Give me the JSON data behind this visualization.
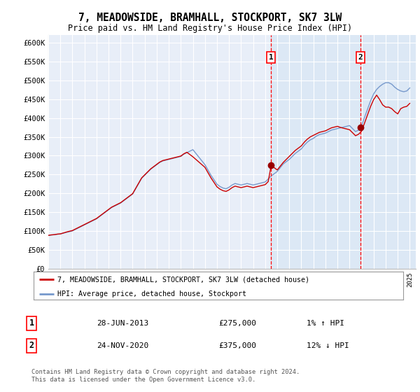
{
  "title": "7, MEADOWSIDE, BRAMHALL, STOCKPORT, SK7 3LW",
  "subtitle": "Price paid vs. HM Land Registry's House Price Index (HPI)",
  "yticks": [
    0,
    50000,
    100000,
    150000,
    200000,
    250000,
    300000,
    350000,
    400000,
    450000,
    500000,
    550000,
    600000
  ],
  "ytick_labels": [
    "£0",
    "£50K",
    "£100K",
    "£150K",
    "£200K",
    "£250K",
    "£300K",
    "£350K",
    "£400K",
    "£450K",
    "£500K",
    "£550K",
    "£600K"
  ],
  "xlim_start": 1995.0,
  "xlim_end": 2025.5,
  "ylim_min": 0,
  "ylim_max": 620000,
  "background_color": "#e8eef8",
  "shaded_bg_color": "#dce8f5",
  "grid_color": "#ffffff",
  "house_line_color": "#cc0000",
  "hpi_line_color": "#7799cc",
  "transaction1_x": 2013.49,
  "transaction1_y": 275000,
  "transaction2_x": 2020.9,
  "transaction2_y": 375000,
  "legend_label_house": "7, MEADOWSIDE, BRAMHALL, STOCKPORT, SK7 3LW (detached house)",
  "legend_label_hpi": "HPI: Average price, detached house, Stockport",
  "annotation1_date": "28-JUN-2013",
  "annotation1_price": "£275,000",
  "annotation1_hpi": "1% ↑ HPI",
  "annotation2_date": "24-NOV-2020",
  "annotation2_price": "£375,000",
  "annotation2_hpi": "12% ↓ HPI",
  "footer": "Contains HM Land Registry data © Crown copyright and database right 2024.\nThis data is licensed under the Open Government Licence v3.0.",
  "hpi_x": [
    1995.0,
    1995.25,
    1995.5,
    1995.75,
    1996.0,
    1996.25,
    1996.5,
    1996.75,
    1997.0,
    1997.25,
    1997.5,
    1997.75,
    1998.0,
    1998.25,
    1998.5,
    1998.75,
    1999.0,
    1999.25,
    1999.5,
    1999.75,
    2000.0,
    2000.25,
    2000.5,
    2000.75,
    2001.0,
    2001.25,
    2001.5,
    2001.75,
    2002.0,
    2002.25,
    2002.5,
    2002.75,
    2003.0,
    2003.25,
    2003.5,
    2003.75,
    2004.0,
    2004.25,
    2004.5,
    2004.75,
    2005.0,
    2005.25,
    2005.5,
    2005.75,
    2006.0,
    2006.25,
    2006.5,
    2006.75,
    2007.0,
    2007.25,
    2007.5,
    2007.75,
    2008.0,
    2008.25,
    2008.5,
    2008.75,
    2009.0,
    2009.25,
    2009.5,
    2009.75,
    2010.0,
    2010.25,
    2010.5,
    2010.75,
    2011.0,
    2011.25,
    2011.5,
    2011.75,
    2012.0,
    2012.25,
    2012.5,
    2012.75,
    2013.0,
    2013.25,
    2013.5,
    2013.75,
    2014.0,
    2014.25,
    2014.5,
    2014.75,
    2015.0,
    2015.25,
    2015.5,
    2015.75,
    2016.0,
    2016.25,
    2016.5,
    2016.75,
    2017.0,
    2017.25,
    2017.5,
    2017.75,
    2018.0,
    2018.25,
    2018.5,
    2018.75,
    2019.0,
    2019.25,
    2019.5,
    2019.75,
    2020.0,
    2020.25,
    2020.5,
    2020.75,
    2021.0,
    2021.25,
    2021.5,
    2021.75,
    2022.0,
    2022.25,
    2022.5,
    2022.75,
    2023.0,
    2023.25,
    2023.5,
    2023.75,
    2024.0,
    2024.25,
    2024.5,
    2024.75,
    2025.0
  ],
  "hpi_y": [
    88000,
    89000,
    90000,
    91000,
    92000,
    94000,
    96000,
    98000,
    100000,
    104000,
    108000,
    112000,
    116000,
    120000,
    124000,
    128000,
    132000,
    138000,
    144000,
    150000,
    156000,
    162000,
    166000,
    170000,
    174000,
    180000,
    186000,
    192000,
    198000,
    212000,
    226000,
    240000,
    248000,
    256000,
    264000,
    270000,
    276000,
    282000,
    286000,
    288000,
    290000,
    292000,
    294000,
    296000,
    298000,
    304000,
    308000,
    312000,
    316000,
    306000,
    296000,
    286000,
    276000,
    262000,
    248000,
    236000,
    224000,
    218000,
    214000,
    212000,
    216000,
    222000,
    226000,
    224000,
    222000,
    224000,
    226000,
    224000,
    222000,
    224000,
    226000,
    228000,
    230000,
    238000,
    246000,
    252000,
    258000,
    268000,
    278000,
    284000,
    290000,
    298000,
    306000,
    312000,
    318000,
    328000,
    336000,
    342000,
    346000,
    352000,
    356000,
    358000,
    360000,
    364000,
    368000,
    370000,
    372000,
    374000,
    376000,
    378000,
    380000,
    372000,
    364000,
    368000,
    380000,
    402000,
    424000,
    446000,
    464000,
    476000,
    484000,
    490000,
    494000,
    494000,
    490000,
    482000,
    476000,
    472000,
    470000,
    472000,
    480000
  ],
  "house_x": [
    1995.0,
    1995.25,
    1995.5,
    1995.75,
    1996.0,
    1996.25,
    1996.5,
    1996.75,
    1997.0,
    1997.25,
    1997.5,
    1997.75,
    1998.0,
    1998.25,
    1998.5,
    1998.75,
    1999.0,
    1999.25,
    1999.5,
    1999.75,
    2000.0,
    2000.25,
    2000.5,
    2000.75,
    2001.0,
    2001.25,
    2001.5,
    2001.75,
    2002.0,
    2002.25,
    2002.5,
    2002.75,
    2003.0,
    2003.25,
    2003.5,
    2003.75,
    2004.0,
    2004.25,
    2004.5,
    2004.75,
    2005.0,
    2005.25,
    2005.5,
    2005.75,
    2006.0,
    2006.25,
    2006.5,
    2006.75,
    2007.0,
    2007.25,
    2007.5,
    2007.75,
    2008.0,
    2008.25,
    2008.5,
    2008.75,
    2009.0,
    2009.25,
    2009.5,
    2009.75,
    2010.0,
    2010.25,
    2010.5,
    2010.75,
    2011.0,
    2011.25,
    2011.5,
    2011.75,
    2012.0,
    2012.25,
    2012.5,
    2012.75,
    2013.0,
    2013.25,
    2013.5,
    2013.75,
    2014.0,
    2014.25,
    2014.5,
    2014.75,
    2015.0,
    2015.25,
    2015.5,
    2015.75,
    2016.0,
    2016.25,
    2016.5,
    2016.75,
    2017.0,
    2017.25,
    2017.5,
    2017.75,
    2018.0,
    2018.25,
    2018.5,
    2018.75,
    2019.0,
    2019.25,
    2019.5,
    2019.75,
    2020.0,
    2020.25,
    2020.5,
    2020.75,
    2021.0,
    2021.25,
    2021.5,
    2021.75,
    2022.0,
    2022.25,
    2022.5,
    2022.75,
    2023.0,
    2023.25,
    2023.5,
    2023.75,
    2024.0,
    2024.25,
    2024.5,
    2024.75,
    2025.0
  ],
  "house_y": [
    88000,
    89500,
    90000,
    91500,
    92000,
    94500,
    97000,
    99000,
    101000,
    105000,
    109000,
    113000,
    117000,
    121000,
    125000,
    129000,
    133000,
    139000,
    145000,
    151000,
    157000,
    163000,
    167000,
    171000,
    175000,
    181000,
    187000,
    193000,
    199000,
    213000,
    227000,
    241000,
    249000,
    257000,
    265000,
    271000,
    277000,
    283000,
    287000,
    289000,
    291000,
    293000,
    295000,
    297000,
    299000,
    305000,
    309000,
    303000,
    297000,
    290000,
    283000,
    276000,
    269000,
    255000,
    241000,
    229000,
    217000,
    211000,
    207000,
    205000,
    209000,
    215000,
    219000,
    217000,
    215000,
    217000,
    219000,
    217000,
    215000,
    217000,
    219000,
    221000,
    223000,
    231000,
    275000,
    268000,
    262000,
    272000,
    282000,
    290000,
    298000,
    306000,
    314000,
    320000,
    326000,
    336000,
    344000,
    350000,
    354000,
    358000,
    362000,
    364000,
    366000,
    370000,
    374000,
    376000,
    378000,
    375000,
    373000,
    371000,
    369000,
    361000,
    353000,
    357000,
    365000,
    387000,
    409000,
    431000,
    449000,
    461000,
    449000,
    435000,
    429000,
    429000,
    425000,
    417000,
    411000,
    425000,
    429000,
    431000,
    439000
  ]
}
